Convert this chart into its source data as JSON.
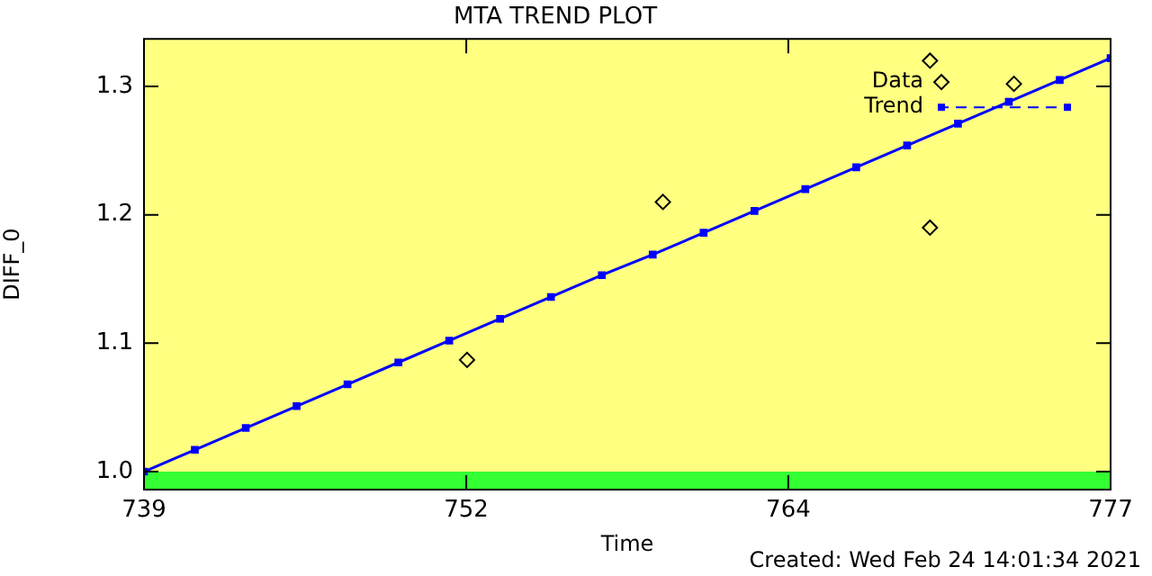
{
  "chart_data": {
    "type": "scatter",
    "title": "MTA TREND PLOT",
    "xlabel": "Time",
    "ylabel": "DIFF_0",
    "annotations": [
      "Created: Wed Feb 24 14:01:34 2021"
    ],
    "xlim": [
      739,
      777
    ],
    "xticks": [
      739,
      {
        "value": 751.67,
        "label": "752"
      },
      {
        "value": 764.33,
        "label": "764"
      },
      777
    ],
    "ylim": [
      0.986,
      1.337
    ],
    "yticks": [
      {
        "value": 1,
        "label": "1.0"
      },
      {
        "value": 1.1,
        "label": "1.1"
      },
      {
        "value": 1.2,
        "label": "1.2"
      },
      {
        "value": 1.3,
        "label": "1.3"
      }
    ],
    "legend": "top right",
    "bands": [
      {
        "axis": "y",
        "from": 0.986,
        "to": 1.0,
        "color": "#33ff33"
      }
    ],
    "series": [
      {
        "name": "Data",
        "marker": "diamond",
        "color": "#000000",
        "x": [
          751.7,
          759.4,
          769.9,
          769.9,
          773.2
        ],
        "values": [
          1.087,
          1.21,
          1.32,
          1.19,
          1.302
        ]
      },
      {
        "name": "Trend",
        "type": "line",
        "marker": "square",
        "line_style": "solid",
        "color": "#0000ff",
        "x": [
          739,
          741,
          743,
          745,
          747,
          749,
          751,
          753,
          755,
          757,
          759,
          761,
          763,
          765,
          767,
          769,
          771,
          773,
          775,
          777
        ],
        "values": [
          1.0,
          1.017,
          1.034,
          1.051,
          1.068,
          1.085,
          1.102,
          1.119,
          1.136,
          1.153,
          1.169,
          1.186,
          1.203,
          1.22,
          1.237,
          1.254,
          1.271,
          1.288,
          1.305,
          1.322
        ]
      }
    ]
  }
}
